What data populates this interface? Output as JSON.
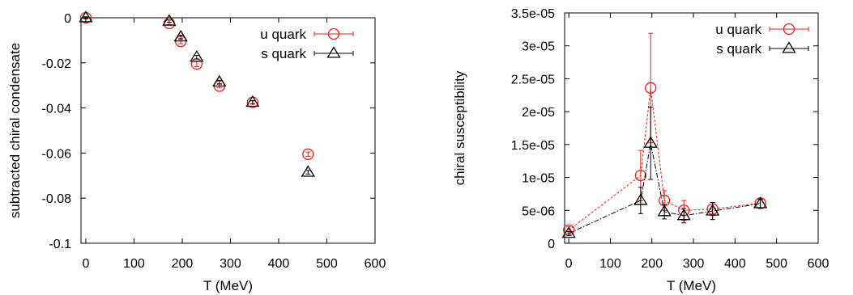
{
  "chart_data": [
    {
      "type": "scatter",
      "xlabel": "T (MeV)",
      "ylabel": "subtracted chiral condensate",
      "xlim": [
        -10,
        600
      ],
      "ylim": [
        -0.1,
        0
      ],
      "xticks": [
        "0",
        "100",
        "200",
        "300",
        "400",
        "500",
        "600"
      ],
      "yticks": [
        "0",
        "-0.02",
        "-0.04",
        "-0.06",
        "-0.08",
        "-0.1"
      ],
      "legend_position": "top-right",
      "grid": false,
      "series": [
        {
          "name": "u quark",
          "color": "#e8201a",
          "marker": "circle",
          "connected": false,
          "x": [
            0,
            173,
            197,
            230,
            277,
            346,
            461
          ],
          "y": [
            0.0,
            -0.0025,
            -0.0105,
            -0.0205,
            -0.0303,
            -0.0375,
            -0.0605
          ],
          "err": [
            0.0004,
            0.0005,
            0.001,
            0.0012,
            0.0008,
            0.0006,
            0.001
          ]
        },
        {
          "name": "s quark",
          "color": "#000000",
          "marker": "triangle",
          "connected": false,
          "x": [
            0,
            173,
            197,
            230,
            277,
            346,
            461
          ],
          "y": [
            0.0,
            -0.0015,
            -0.0085,
            -0.0175,
            -0.0285,
            -0.0375,
            -0.0685
          ],
          "err": [
            0.0004,
            0.0005,
            0.0008,
            0.0008,
            0.0008,
            0.0008,
            0.0008
          ]
        }
      ]
    },
    {
      "type": "line",
      "xlabel": "T (MeV)",
      "ylabel": "chiral susceptibility",
      "xlim": [
        -10,
        600
      ],
      "ylim": [
        0,
        3.5e-05
      ],
      "xticks": [
        "0",
        "100",
        "200",
        "300",
        "400",
        "500",
        "600"
      ],
      "yticks": [
        "0",
        "5e-06",
        "1e-05",
        "1.5e-05",
        "2e-05",
        "2.5e-05",
        "3e-05",
        "3.5e-05"
      ],
      "legend_position": "top-right",
      "grid": false,
      "series": [
        {
          "name": "u quark",
          "color": "#e8201a",
          "marker": "circle",
          "connected": true,
          "x": [
            0,
            173,
            197,
            230,
            277,
            346,
            461
          ],
          "y": [
            2e-06,
            1.03e-05,
            2.36e-05,
            6.5e-06,
            5e-06,
            5.2e-06,
            6.1e-06
          ],
          "err": [
            5e-07,
            3.8e-06,
            8.3e-06,
            1.5e-06,
            1.5e-06,
            1e-06,
            7e-07
          ]
        },
        {
          "name": "s quark",
          "color": "#000000",
          "marker": "triangle",
          "connected": true,
          "x": [
            0,
            173,
            197,
            230,
            277,
            346,
            461
          ],
          "y": [
            1.5e-06,
            6.5e-06,
            1.52e-05,
            4.8e-06,
            4.2e-06,
            4.9e-06,
            6e-06
          ],
          "err": [
            3e-07,
            2e-06,
            5.5e-06,
            1.1e-06,
            1.1e-06,
            1.3e-06,
            7e-07
          ]
        }
      ]
    }
  ]
}
